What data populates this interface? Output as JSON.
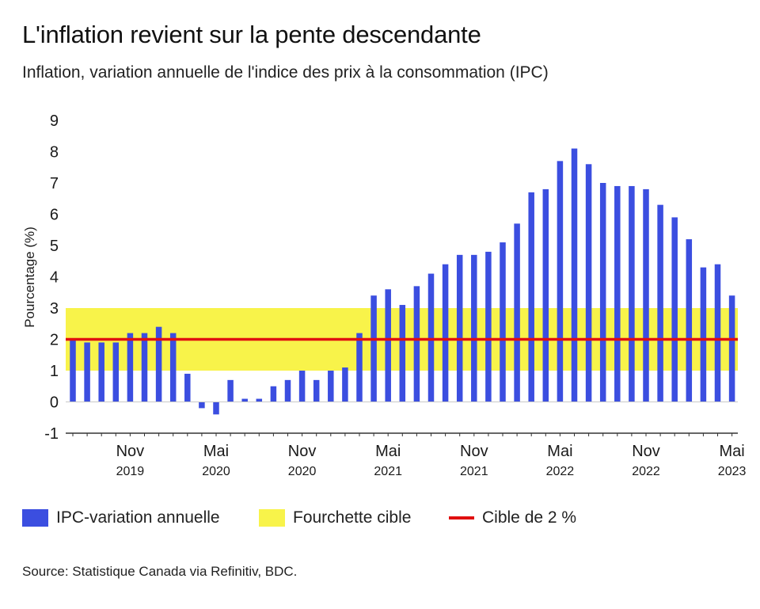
{
  "title": "L'inflation revient sur la pente descendante",
  "subtitle": "Inflation, variation annuelle de l'indice des prix à la consommation (IPC)",
  "source": "Source: Statistique Canada via Refinitiv, BDC.",
  "colors": {
    "bars": "#3b4ee0",
    "band": "#f8f34a",
    "target": "#e01010"
  },
  "legend": [
    {
      "label": "IPC-variation annuelle"
    },
    {
      "label": "Fourchette cible"
    },
    {
      "label": "Cible de 2 %"
    }
  ],
  "chart_data": {
    "type": "bar",
    "ylabel": "Pourcentage (%)",
    "xlabel": "",
    "ylim": [
      -1,
      9
    ],
    "yticks": [
      "-1",
      "0",
      "1",
      "2",
      "3",
      "4",
      "5",
      "6",
      "7",
      "8",
      "9"
    ],
    "categories": [
      "2019-07",
      "2019-08",
      "2019-09",
      "2019-10",
      "2019-11",
      "2019-12",
      "2020-01",
      "2020-02",
      "2020-03",
      "2020-04",
      "2020-05",
      "2020-06",
      "2020-07",
      "2020-08",
      "2020-09",
      "2020-10",
      "2020-11",
      "2020-12",
      "2021-01",
      "2021-02",
      "2021-03",
      "2021-04",
      "2021-05",
      "2021-06",
      "2021-07",
      "2021-08",
      "2021-09",
      "2021-10",
      "2021-11",
      "2021-12",
      "2022-01",
      "2022-02",
      "2022-03",
      "2022-04",
      "2022-05",
      "2022-06",
      "2022-07",
      "2022-08",
      "2022-09",
      "2022-10",
      "2022-11",
      "2022-12",
      "2023-01",
      "2023-02",
      "2023-03",
      "2023-04",
      "2023-05"
    ],
    "series": [
      {
        "name": "IPC-variation annuelle",
        "values": [
          2.0,
          1.9,
          1.9,
          1.9,
          2.2,
          2.2,
          2.4,
          2.2,
          0.9,
          -0.2,
          -0.4,
          0.7,
          0.1,
          0.1,
          0.5,
          0.7,
          1.0,
          0.7,
          1.0,
          1.1,
          2.2,
          3.4,
          3.6,
          3.1,
          3.7,
          4.1,
          4.4,
          4.7,
          4.7,
          4.8,
          5.1,
          5.7,
          6.7,
          6.8,
          7.7,
          8.1,
          7.6,
          7.0,
          6.9,
          6.9,
          6.8,
          6.3,
          5.9,
          5.2,
          4.3,
          4.4,
          3.4
        ]
      }
    ],
    "target_band": [
      1,
      3
    ],
    "target_line": 2,
    "x_tick_labels": [
      {
        "index": 4,
        "month": "Nov",
        "year": "2019"
      },
      {
        "index": 10,
        "month": "Mai",
        "year": "2020"
      },
      {
        "index": 16,
        "month": "Nov",
        "year": "2020"
      },
      {
        "index": 22,
        "month": "Mai",
        "year": "2021"
      },
      {
        "index": 28,
        "month": "Nov",
        "year": "2021"
      },
      {
        "index": 34,
        "month": "Mai",
        "year": "2022"
      },
      {
        "index": 40,
        "month": "Nov",
        "year": "2022"
      },
      {
        "index": 46,
        "month": "Mai",
        "year": "2023"
      }
    ]
  }
}
